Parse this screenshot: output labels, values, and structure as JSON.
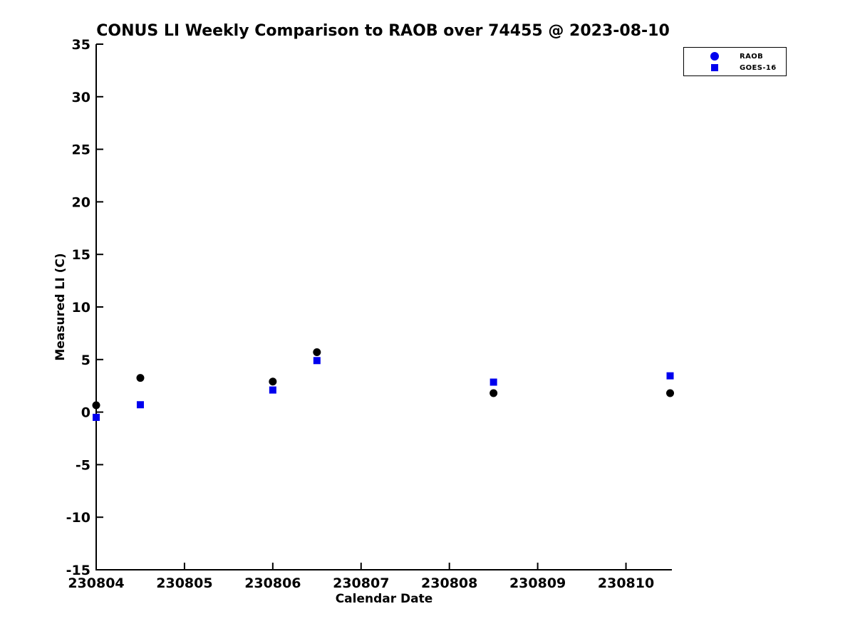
{
  "chart_data": {
    "type": "scatter",
    "title": "CONUS LI Weekly Comparison to RAOB over 74455 @ 2023-08-10",
    "xlabel": "Calendar Date",
    "ylabel": "Measured LI (C)",
    "xlim": [
      230804,
      230810.52
    ],
    "ylim": [
      -15,
      35
    ],
    "x_ticks": [
      230804,
      230805,
      230806,
      230807,
      230808,
      230809,
      230810
    ],
    "y_ticks": [
      35,
      30,
      25,
      20,
      15,
      10,
      5,
      0,
      -5,
      -10,
      -15
    ],
    "grid": false,
    "legend_position": "top-right-outside",
    "axis_color": "#000000",
    "series": [
      {
        "name": "RAOB",
        "marker": "circle",
        "plot_color": "#000000",
        "legend_color": "#0000ee",
        "points": [
          [
            230804.0,
            0.65
          ],
          [
            230804.5,
            3.25
          ],
          [
            230806.0,
            2.9
          ],
          [
            230806.5,
            5.7
          ],
          [
            230808.5,
            1.8
          ],
          [
            230810.5,
            1.8
          ]
        ]
      },
      {
        "name": "GOES-16",
        "marker": "square",
        "plot_color": "#0000ee",
        "legend_color": "#0000ee",
        "points": [
          [
            230804.0,
            -0.5
          ],
          [
            230804.5,
            0.7
          ],
          [
            230806.0,
            2.1
          ],
          [
            230806.5,
            4.9
          ],
          [
            230808.5,
            2.85
          ],
          [
            230810.5,
            3.45
          ]
        ]
      }
    ]
  }
}
